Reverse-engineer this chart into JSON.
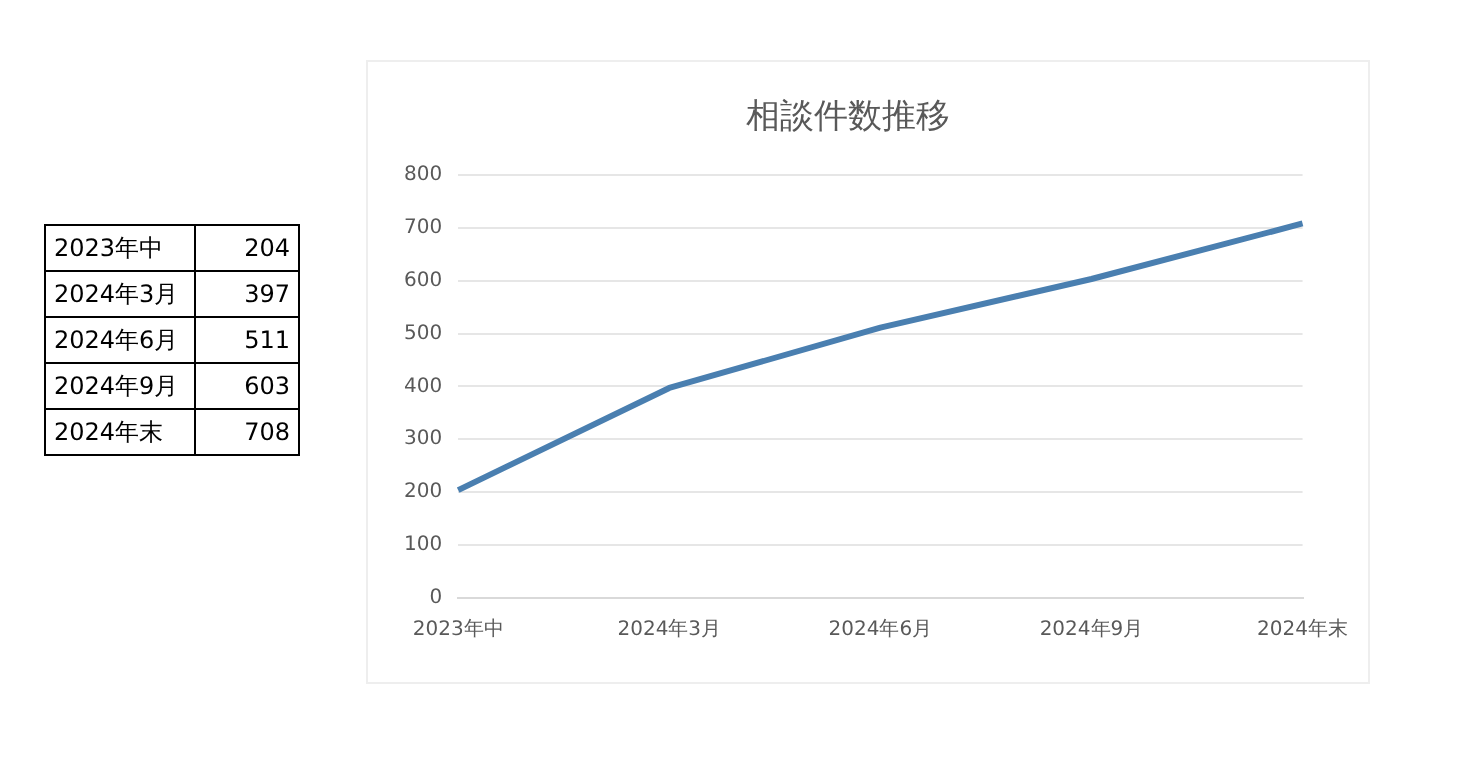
{
  "chart_data": [
    {
      "type": "other",
      "annotations": [
        "2023年中",
        "204",
        "2024年3月",
        "397",
        "2024年6月",
        "511",
        "2024年9月",
        "603",
        "2024年末",
        "708"
      ]
    },
    {
      "type": "line",
      "title": "相談件数推移",
      "categories": [
        "2023年中",
        "2024年3月",
        "2024年6月",
        "2024年9月",
        "2024年末"
      ],
      "series": [
        {
          "color": "#4a7fb0",
          "values": [
            204,
            397,
            511,
            603,
            708
          ]
        }
      ],
      "ylim": [
        0,
        800
      ],
      "yticks": [
        0,
        100,
        200,
        300,
        400,
        500,
        600,
        700,
        800
      ],
      "grid": "y",
      "legend": false,
      "marker": "none",
      "line_style": "solid"
    }
  ]
}
